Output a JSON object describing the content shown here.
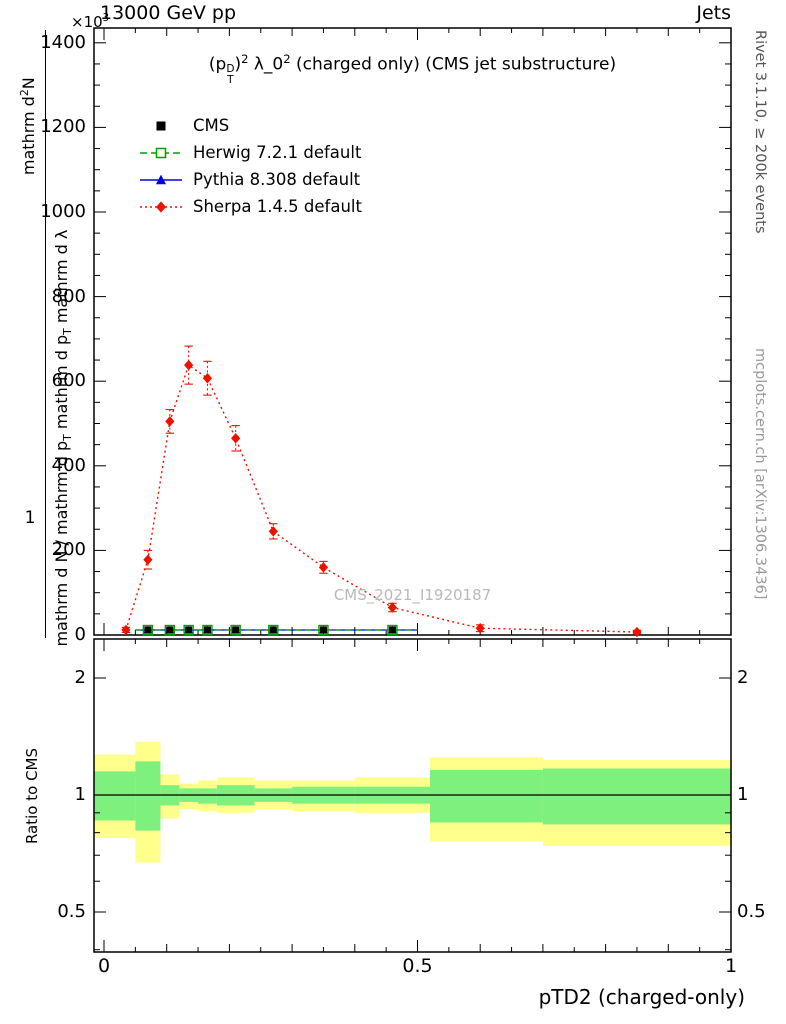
{
  "header": {
    "collision_label": "13000 GeV pp",
    "topic_label": "Jets",
    "axis_multiplier_base": "×10",
    "axis_multiplier_exp": "3"
  },
  "side_labels": {
    "rivet": "Rivet 3.1.10, ≥ 200k events",
    "mcplots": "mcplots.cern.ch [arXiv:1306.3436]"
  },
  "plot_title": {
    "p1": "(p",
    "stack_top": "D",
    "stack_bottom": "T",
    "p2": ")",
    "exp1": "2",
    "p3": " λ_0",
    "exp2": "2",
    "p4": " (charged only) (CMS jet substructure)"
  },
  "watermark": "CMS_2021_I1920187",
  "ylabel": {
    "num_a": "mathrm d",
    "num_exp": "2",
    "num_b": "N",
    "one": "1",
    "den_a": "mathrm d N / mathrm d p",
    "den_sub1": "T",
    "den_b": " mathrm d p",
    "den_sub2": "T",
    "den_c": " mathrm d λ"
  },
  "ratio_ylabel": "Ratio to CMS",
  "xaxis_title": "pTD2 (charged-only)",
  "legend": [
    {
      "label": "CMS",
      "marker": "square-filled",
      "color": "#000000",
      "line": "none"
    },
    {
      "label": "Herwig 7.2.1 default",
      "marker": "square-open",
      "color": "#00a000",
      "line": "dashed"
    },
    {
      "label": "Pythia 8.308 default",
      "marker": "triangle-filled",
      "color": "#0000dd",
      "line": "solid"
    },
    {
      "label": "Sherpa 1.4.5 default",
      "marker": "diamond-filled",
      "color": "#ee1100",
      "line": "dotted"
    }
  ],
  "axes": {
    "main_y": {
      "ticks": [
        0,
        200,
        400,
        600,
        800,
        1000,
        1200,
        1400
      ],
      "lim": [
        0,
        1435
      ],
      "minor_step": 50,
      "multiplier": "×10^3"
    },
    "main_x": {
      "ticks": [
        0,
        0.5,
        1
      ],
      "tick_labels": [
        "0",
        "0.5",
        "1"
      ],
      "lim": [
        0,
        1
      ]
    },
    "ratio_y": {
      "ticks": [
        2,
        1,
        0.5
      ],
      "tick_labels": [
        "2",
        "1",
        "0.5"
      ],
      "scale": "log",
      "lim": [
        0.39,
        2.52
      ]
    }
  },
  "chart_data": {
    "type": "line",
    "title": "(p_T^D)^2 λ_0^2 (charged only) (CMS jet substructure)",
    "xlabel": "pTD2 (charged-only)",
    "ylabel": "1 / (mathrm d N / mathrm d p_T) · mathrm d^2 N / (mathrm d p_T mathrm d λ)  [×10^3]",
    "xlim": [
      0,
      1
    ],
    "ylim": [
      0,
      1400
    ],
    "legend_position": "top-left",
    "x": [
      0.035,
      0.07,
      0.105,
      0.135,
      0.165,
      0.21,
      0.27,
      0.35,
      0.46,
      0.6,
      0.85
    ],
    "bin_edges": [
      0,
      0.05,
      0.09,
      0.12,
      0.15,
      0.18,
      0.24,
      0.3,
      0.4,
      0.52,
      0.7,
      1.0
    ],
    "series": [
      {
        "name": "CMS",
        "marker": "square-filled",
        "values": [
          0,
          0,
          0,
          0,
          0,
          0,
          0,
          0,
          0,
          0,
          0
        ],
        "note": "markers lie at ≈0 on the ×10^3 axis scale, hugging the x-axis"
      },
      {
        "name": "Herwig 7.2.1 default",
        "marker": "square-open",
        "values": [
          0,
          0,
          0,
          0,
          0,
          0,
          0,
          0,
          0,
          0,
          0
        ],
        "note": "≈0 on this scale"
      },
      {
        "name": "Pythia 8.308 default",
        "marker": "triangle-filled",
        "values": [
          0,
          0,
          0,
          0,
          0,
          0,
          0,
          0,
          0,
          0,
          0
        ],
        "note": "≈0 on this scale"
      },
      {
        "name": "Sherpa 1.4.5 default",
        "marker": "diamond-filled",
        "values": [
          12,
          178,
          505,
          638,
          607,
          465,
          245,
          160,
          65,
          16,
          7
        ],
        "errors": [
          6,
          22,
          28,
          45,
          40,
          30,
          18,
          14,
          10,
          8,
          4
        ]
      }
    ],
    "ratio_panel": {
      "ylabel": "Ratio to CMS",
      "yscale": "log",
      "ylim": [
        0.39,
        2.52
      ],
      "yticks": [
        0.5,
        1,
        2
      ],
      "reference_line": 1,
      "bands": [
        {
          "x0": 0.0,
          "x1": 0.05,
          "yellow": [
            0.775,
            1.27
          ],
          "green": [
            0.86,
            1.15
          ]
        },
        {
          "x0": 0.05,
          "x1": 0.09,
          "yellow": [
            0.67,
            1.37
          ],
          "green": [
            0.81,
            1.22
          ]
        },
        {
          "x0": 0.09,
          "x1": 0.12,
          "yellow": [
            0.87,
            1.13
          ],
          "green": [
            0.94,
            1.06
          ]
        },
        {
          "x0": 0.12,
          "x1": 0.15,
          "yellow": [
            0.92,
            1.07
          ],
          "green": [
            0.96,
            1.04
          ]
        },
        {
          "x0": 0.15,
          "x1": 0.18,
          "yellow": [
            0.91,
            1.09
          ],
          "green": [
            0.95,
            1.04
          ]
        },
        {
          "x0": 0.18,
          "x1": 0.24,
          "yellow": [
            0.9,
            1.11
          ],
          "green": [
            0.94,
            1.06
          ]
        },
        {
          "x0": 0.24,
          "x1": 0.3,
          "yellow": [
            0.92,
            1.09
          ],
          "green": [
            0.96,
            1.04
          ]
        },
        {
          "x0": 0.3,
          "x1": 0.4,
          "yellow": [
            0.91,
            1.09
          ],
          "green": [
            0.95,
            1.05
          ]
        },
        {
          "x0": 0.4,
          "x1": 0.52,
          "yellow": [
            0.9,
            1.11
          ],
          "green": [
            0.95,
            1.05
          ]
        },
        {
          "x0": 0.52,
          "x1": 0.7,
          "yellow": [
            0.76,
            1.25
          ],
          "green": [
            0.85,
            1.16
          ]
        },
        {
          "x0": 0.7,
          "x1": 1.0,
          "yellow": [
            0.74,
            1.23
          ],
          "green": [
            0.84,
            1.17
          ]
        }
      ]
    },
    "colors": {
      "cms": "#000000",
      "herwig": "#00a000",
      "pythia": "#0000dd",
      "sherpa": "#ee1100",
      "band_yellow": "#ffff8c",
      "band_green": "#7df07d"
    }
  }
}
